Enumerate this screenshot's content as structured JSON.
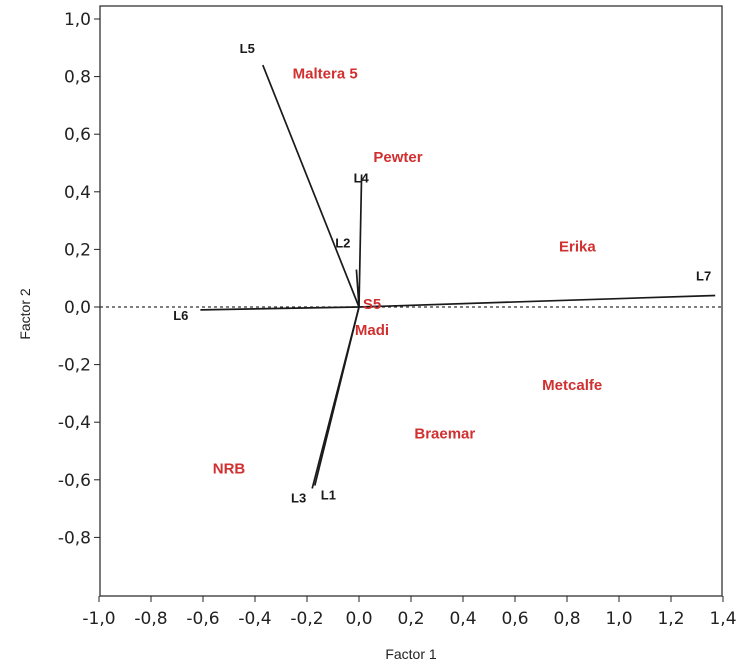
{
  "chart_data": {
    "type": "scatter",
    "subtype": "biplot",
    "title": "",
    "xlabel": "Factor 1",
    "ylabel": "Factor 2",
    "xlim": [
      -1.0,
      1.4
    ],
    "ylim": [
      -0.9,
      1.0
    ],
    "x_ticks": [
      "-1,0",
      "-0,8",
      "-0,6",
      "-0,4",
      "-0,2",
      "0,0",
      "0,2",
      "0,4",
      "0,6",
      "0,8",
      "1,0",
      "1,2",
      "1,4"
    ],
    "x_tick_values": [
      -1.0,
      -0.8,
      -0.6,
      -0.4,
      -0.2,
      0.0,
      0.2,
      0.4,
      0.6,
      0.8,
      1.0,
      1.2,
      1.4
    ],
    "y_ticks": [
      "1,0",
      "0,8",
      "0,6",
      "0,4",
      "0,2",
      "0,0",
      "-0,2",
      "-0,4",
      "-0,6",
      "-0,8"
    ],
    "y_tick_values": [
      1.0,
      0.8,
      0.6,
      0.4,
      0.2,
      0.0,
      -0.2,
      -0.4,
      -0.6,
      -0.8
    ],
    "grid": false,
    "reference_line": {
      "y": 0.0,
      "style": "dotted"
    },
    "vectors": [
      {
        "label": "L1",
        "x": -0.17,
        "y": -0.62
      },
      {
        "label": "L2",
        "x": -0.01,
        "y": 0.13
      },
      {
        "label": "L3",
        "x": -0.18,
        "y": -0.63
      },
      {
        "label": "L4",
        "x": 0.01,
        "y": 0.46
      },
      {
        "label": "L5",
        "x": -0.37,
        "y": 0.84
      },
      {
        "label": "L6",
        "x": -0.61,
        "y": -0.01
      },
      {
        "label": "L7",
        "x": 1.37,
        "y": 0.04
      }
    ],
    "points": [
      {
        "label": "Maltera 5",
        "x": -0.13,
        "y": 0.81
      },
      {
        "label": "Pewter",
        "x": 0.15,
        "y": 0.52
      },
      {
        "label": "Erika",
        "x": 0.84,
        "y": 0.21
      },
      {
        "label": "S5",
        "x": 0.05,
        "y": 0.01
      },
      {
        "label": "Madi",
        "x": 0.05,
        "y": -0.08
      },
      {
        "label": "Metcalfe",
        "x": 0.82,
        "y": -0.27
      },
      {
        "label": "Braemar",
        "x": 0.33,
        "y": -0.44
      },
      {
        "label": "NRB",
        "x": -0.5,
        "y": -0.56
      }
    ],
    "colors": {
      "axis": "#222222",
      "vector": "#1a1a1a",
      "vector_label": "#1a1a1a",
      "point_label": "#d03030",
      "reference_line": "#333333"
    }
  }
}
